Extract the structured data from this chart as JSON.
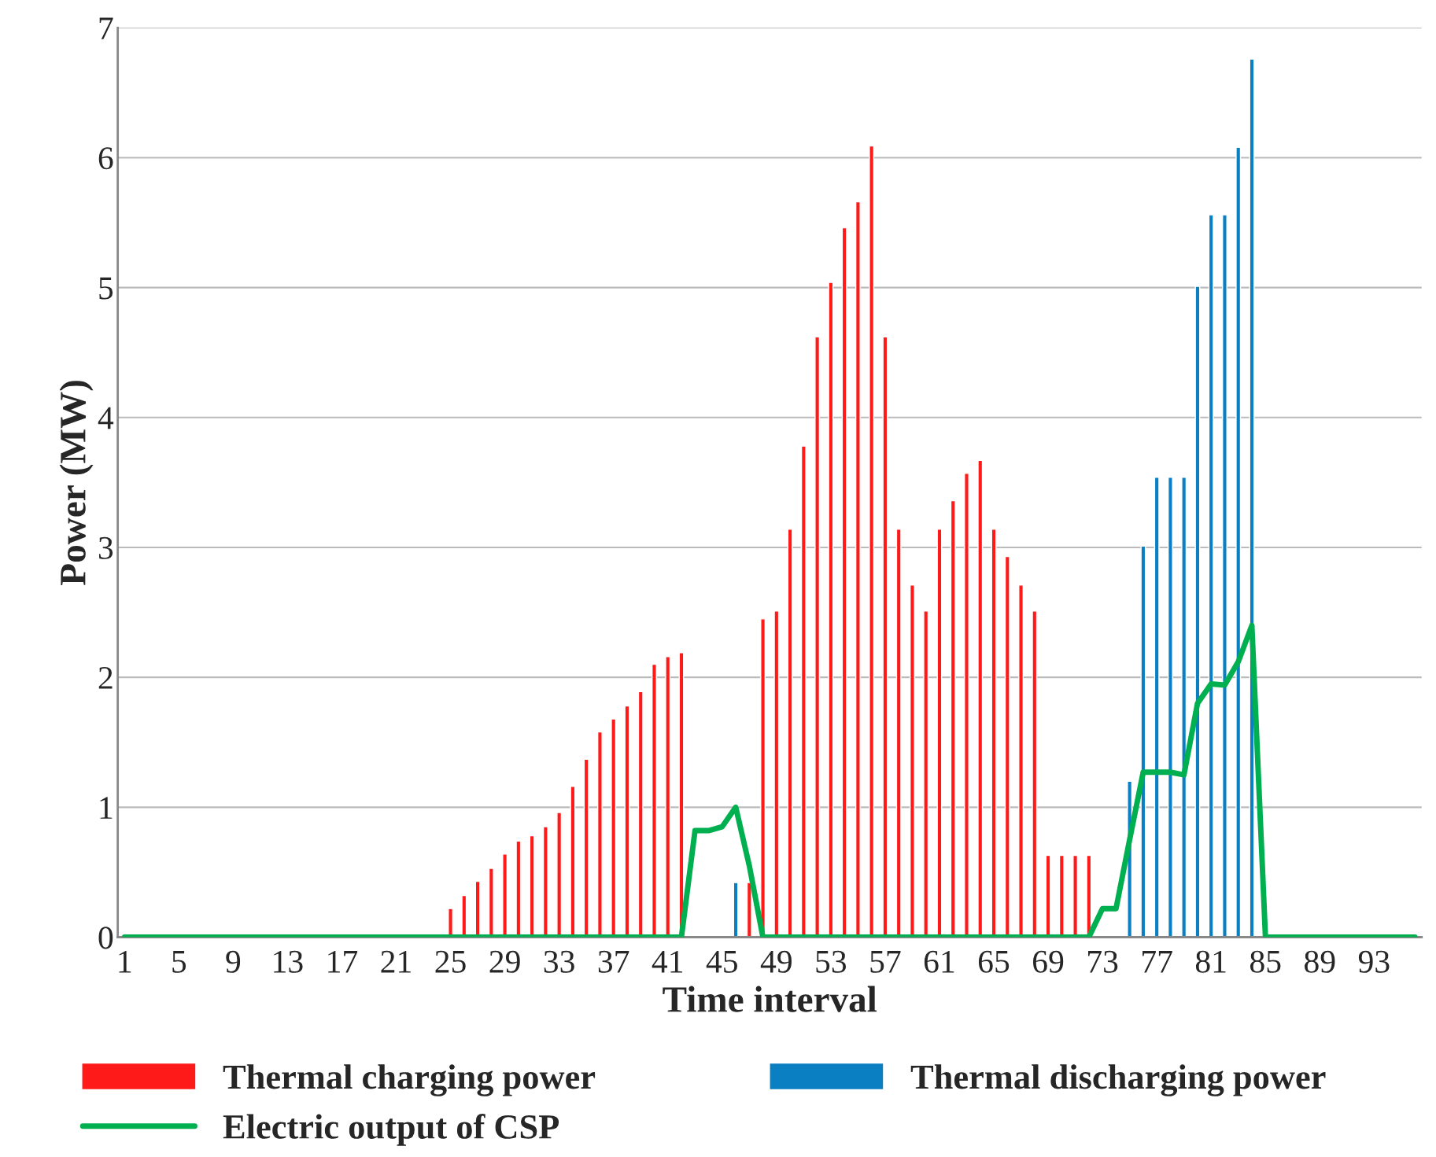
{
  "chart_data": {
    "type": "bar",
    "xlabel": "Time interval",
    "ylabel": "Power (MW)",
    "categories": [
      "1",
      null,
      null,
      null,
      "5",
      null,
      null,
      null,
      "9",
      null,
      null,
      null,
      "13",
      null,
      null,
      null,
      "17",
      null,
      null,
      null,
      "21",
      null,
      null,
      null,
      "25",
      null,
      null,
      null,
      "29",
      null,
      null,
      null,
      "33",
      null,
      null,
      null,
      "37",
      null,
      null,
      null,
      "41",
      null,
      null,
      null,
      "45",
      null,
      null,
      null,
      "49",
      null,
      null,
      null,
      "53",
      null,
      null,
      null,
      "57",
      null,
      null,
      null,
      "61",
      null,
      null,
      null,
      "65",
      null,
      null,
      null,
      "69",
      null,
      null,
      null,
      "73",
      null,
      null,
      null,
      "77",
      null,
      null,
      null,
      "81",
      null,
      null,
      null,
      "85",
      null,
      null,
      null,
      "89",
      null,
      null,
      null,
      "93",
      null,
      null,
      null
    ],
    "series": [
      {
        "name": "Thermal charging power",
        "color": "#ff1a1a",
        "values": [
          null,
          null,
          null,
          null,
          null,
          null,
          null,
          null,
          null,
          null,
          null,
          null,
          null,
          null,
          null,
          null,
          null,
          null,
          null,
          null,
          null,
          null,
          null,
          null,
          0.22,
          0.32,
          0.43,
          0.53,
          0.64,
          0.74,
          0.78,
          0.85,
          0.96,
          1.16,
          1.37,
          1.58,
          1.68,
          1.78,
          1.89,
          2.1,
          2.16,
          2.19,
          null,
          null,
          null,
          null,
          0.42,
          2.45,
          2.51,
          3.14,
          3.78,
          4.62,
          5.04,
          5.46,
          5.66,
          6.09,
          4.62,
          3.14,
          2.71,
          2.51,
          3.14,
          3.36,
          3.57,
          3.67,
          3.14,
          2.93,
          2.71,
          2.51,
          0.63,
          0.63,
          0.63,
          0.63,
          null,
          null,
          null,
          null,
          null,
          null,
          null,
          null,
          null,
          null,
          null,
          null,
          null,
          null,
          null,
          null,
          null,
          null,
          null,
          null,
          null,
          null,
          null,
          null
        ]
      },
      {
        "name": "Thermal discharging power",
        "color": "#0a7fc2",
        "values": [
          null,
          null,
          null,
          null,
          null,
          null,
          null,
          null,
          null,
          null,
          null,
          null,
          null,
          null,
          null,
          null,
          null,
          null,
          null,
          null,
          null,
          null,
          null,
          null,
          null,
          null,
          null,
          null,
          null,
          null,
          null,
          null,
          null,
          null,
          null,
          null,
          null,
          null,
          null,
          null,
          null,
          null,
          null,
          null,
          null,
          0.42,
          null,
          null,
          null,
          null,
          null,
          null,
          null,
          null,
          null,
          null,
          null,
          null,
          null,
          null,
          null,
          null,
          null,
          null,
          null,
          null,
          null,
          null,
          null,
          null,
          null,
          null,
          null,
          null,
          1.2,
          3.01,
          3.54,
          3.54,
          3.54,
          5.01,
          5.56,
          5.56,
          6.08,
          6.76,
          null,
          null,
          null,
          null,
          null,
          null,
          null,
          null,
          null,
          null,
          null,
          null
        ]
      },
      {
        "name": "Electric output of CSP",
        "type": "line",
        "color": "#00b050",
        "values": [
          0,
          0,
          0,
          0,
          0,
          0,
          0,
          0,
          0,
          0,
          0,
          0,
          0,
          0,
          0,
          0,
          0,
          0,
          0,
          0,
          0,
          0,
          0,
          0,
          0,
          0,
          0,
          0,
          0,
          0,
          0,
          0,
          0,
          0,
          0,
          0,
          0,
          0,
          0,
          0,
          0,
          0,
          0.82,
          0.82,
          0.85,
          1.0,
          0.55,
          0,
          0,
          0,
          0,
          0,
          0,
          0,
          0,
          0,
          0,
          0,
          0,
          0,
          0,
          0,
          0,
          0,
          0,
          0,
          0,
          0,
          0,
          0,
          0,
          0,
          0.22,
          0.22,
          0.75,
          1.27,
          1.27,
          1.27,
          1.25,
          1.8,
          1.95,
          1.94,
          2.12,
          2.4,
          0,
          0,
          0,
          0,
          0,
          0,
          0,
          0,
          0,
          0,
          0,
          0
        ]
      }
    ],
    "ylim": [
      0,
      7
    ],
    "yticks": [
      0,
      1,
      2,
      3,
      4,
      5,
      6,
      7
    ],
    "grid": "y",
    "legend": "bottom"
  }
}
